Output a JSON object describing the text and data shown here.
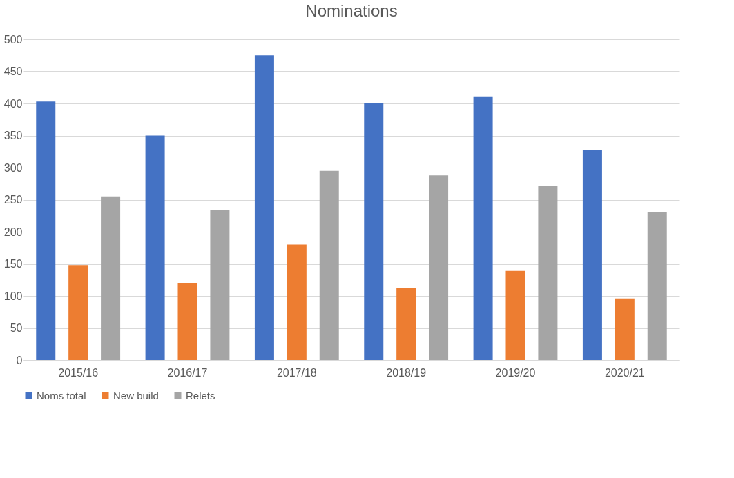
{
  "chart_data": {
    "type": "bar",
    "title": "Nominations",
    "categories": [
      "2015/16",
      "2016/17",
      "2017/18",
      "2018/19",
      "2019/20",
      "2020/21"
    ],
    "series": [
      {
        "name": "Noms total",
        "color": "#4472c4",
        "values": [
          403,
          350,
          475,
          400,
          411,
          327
        ]
      },
      {
        "name": "New build",
        "color": "#ed7d31",
        "values": [
          148,
          120,
          180,
          113,
          139,
          96
        ]
      },
      {
        "name": "Relets",
        "color": "#a5a5a5",
        "values": [
          255,
          234,
          295,
          288,
          271,
          230
        ]
      }
    ],
    "ylim": [
      0,
      500
    ],
    "yticks": [
      0,
      50,
      100,
      150,
      200,
      250,
      300,
      350,
      400,
      450,
      500
    ],
    "grid": "y",
    "legend": "bottom"
  }
}
